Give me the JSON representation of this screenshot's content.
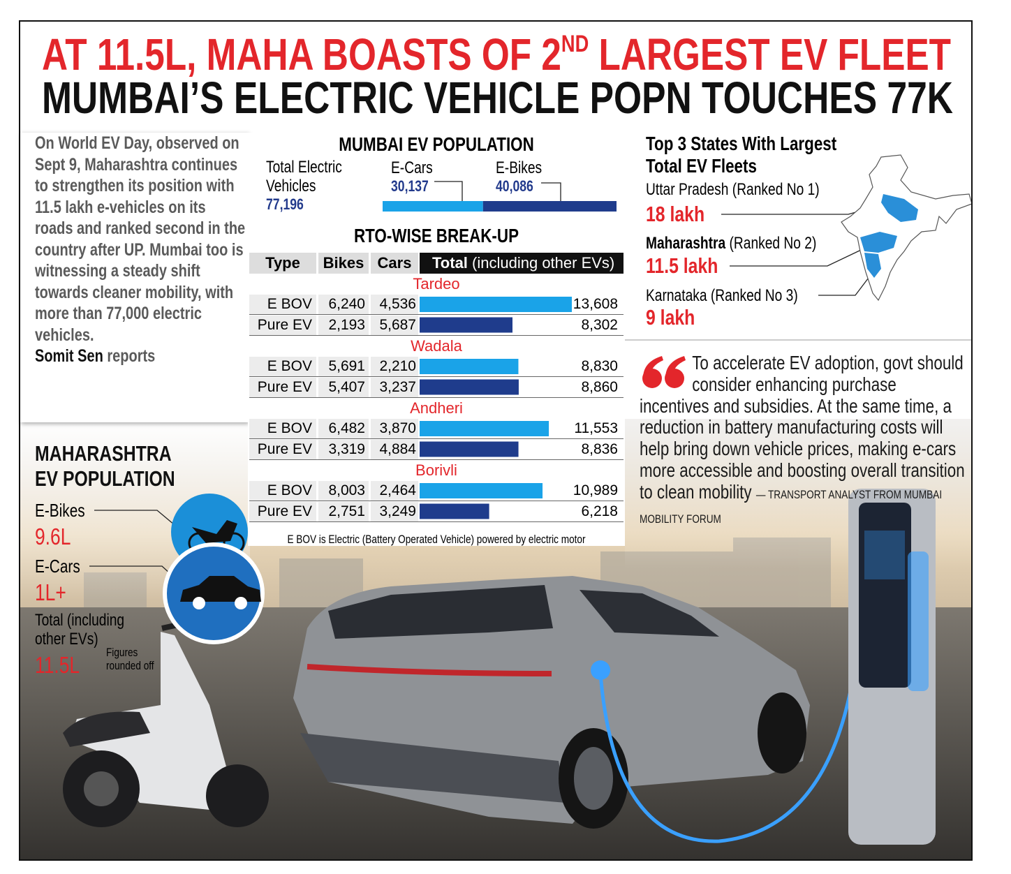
{
  "header": {
    "line1": "AT 11.5L, MAHA BOASTS OF 2",
    "line1_sup": "ND",
    "line1_end": " LARGEST EV FLEET",
    "line2": "MUMBAI’S ELECTRIC VEHICLE POPN TOUCHES 77K"
  },
  "intro": {
    "text": "On World EV Day, observed on Sept 9, Maharashtra continues to strengthen its position with 11.5 lakh e-vehicles on its roads and ranked second in the country after UP. Mumbai too is witnessing a steady shift towards cleaner mobility, with more than 77,000 electric vehicles.",
    "author": "Somit Sen",
    "suffix": "reports"
  },
  "maharashtra": {
    "title": "MAHARASHTRA EV POPULATION",
    "items": [
      {
        "label": "E-Bikes",
        "value": "9.6L"
      },
      {
        "label": "E-Cars",
        "value": "1L+"
      },
      {
        "label": "Total (including other EVs)",
        "value": "11.5L"
      }
    ],
    "note": "Figures rounded off"
  },
  "mumbai": {
    "title": "MUMBAI EV POPULATION",
    "total_label": "Total Electric Vehicles",
    "total": "77,196",
    "segments": [
      {
        "name": "E-Cars",
        "value": 30137,
        "label": "30,137"
      },
      {
        "name": "E-Bikes",
        "value": 40086,
        "label": "40,086"
      }
    ]
  },
  "rto": {
    "title": "RTO-WISE BREAK-UP",
    "columns": [
      "Type",
      "Bikes",
      "Cars"
    ],
    "total_col": "Total",
    "total_note": "(including other EVs)",
    "regions": [
      {
        "name": "Tardeo",
        "rows": [
          {
            "type": "E BOV",
            "bikes": "6,240",
            "cars": "4,536",
            "total": 13608,
            "total_label": "13,608"
          },
          {
            "type": "Pure EV",
            "bikes": "2,193",
            "cars": "5,687",
            "total": 8302,
            "total_label": "8,302"
          }
        ]
      },
      {
        "name": "Wadala",
        "rows": [
          {
            "type": "E BOV",
            "bikes": "5,691",
            "cars": "2,210",
            "total": 8830,
            "total_label": "8,830"
          },
          {
            "type": "Pure EV",
            "bikes": "5,407",
            "cars": "3,237",
            "total": 8860,
            "total_label": "8,860"
          }
        ]
      },
      {
        "name": "Andheri",
        "rows": [
          {
            "type": "E BOV",
            "bikes": "6,482",
            "cars": "3,870",
            "total": 11553,
            "total_label": "11,553"
          },
          {
            "type": "Pure EV",
            "bikes": "3,319",
            "cars": "4,884",
            "total": 8836,
            "total_label": "8,836"
          }
        ]
      },
      {
        "name": "Borivli",
        "rows": [
          {
            "type": "E BOV",
            "bikes": "8,003",
            "cars": "2,464",
            "total": 10989,
            "total_label": "10,989"
          },
          {
            "type": "Pure EV",
            "bikes": "2,751",
            "cars": "3,249",
            "total": 6218,
            "total_label": "6,218"
          }
        ]
      }
    ],
    "footnote": "E BOV is Electric (Battery Operated Vehicle) powered by electric motor"
  },
  "states": {
    "title": "Top 3 States With Largest Total EV Fleets",
    "items": [
      {
        "name": "Uttar Pradesh",
        "rank": "(Ranked No 1)",
        "value": "18 lakh"
      },
      {
        "name": "Maharashtra",
        "rank": "(Ranked No 2)",
        "value": "11.5 lakh"
      },
      {
        "name": "Karnataka",
        "rank": "(Ranked No 3)",
        "value": "9 lakh"
      }
    ]
  },
  "quote": {
    "text": "To accelerate EV adoption, govt should consider enhancing purchase incentives and subsidies. At the same time, a reduction in battery manufacturing costs will help bring down vehicle prices, making e-cars more accessible and boosting overall transition to clean mobility",
    "attribution": "— TRANSPORT ANALYST FROM MUMBAI MOBILITY FORUM"
  }
}
